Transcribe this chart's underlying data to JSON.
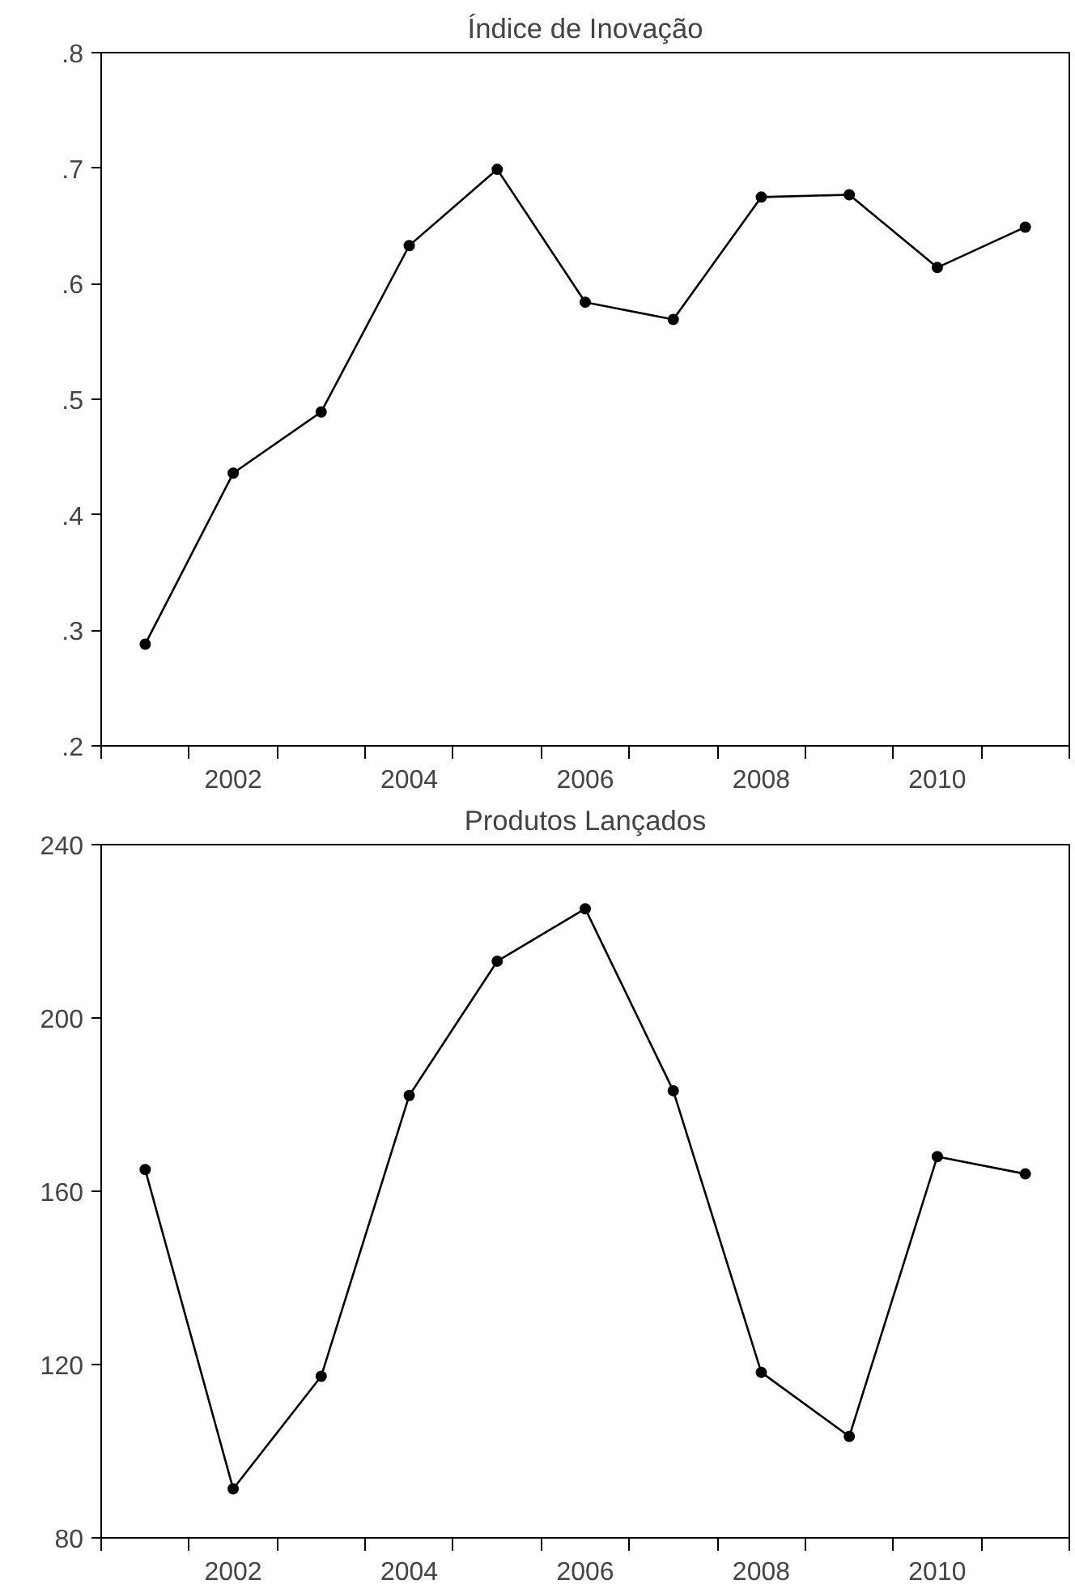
{
  "chart_data": [
    {
      "type": "line",
      "title": "Índice de Inovação",
      "categories": [
        null,
        "2002",
        null,
        "2004",
        null,
        "2006",
        null,
        "2008",
        null,
        "2010",
        null
      ],
      "marker": "circle",
      "grid": false,
      "series": [
        {
          "color": "#000000",
          "values": [
            0.288,
            0.436,
            0.489,
            0.633,
            0.699,
            0.584,
            0.569,
            0.675,
            0.677,
            0.614,
            0.649
          ]
        }
      ],
      "ylim": [
        0.2,
        0.8
      ],
      "yticks": [
        {
          "value": 0.2,
          "label": ".2"
        },
        {
          "value": 0.3,
          "label": ".3"
        },
        {
          "value": 0.4,
          "label": ".4"
        },
        {
          "value": 0.5,
          "label": ".5"
        },
        {
          "value": 0.6,
          "label": ".6"
        },
        {
          "value": 0.7,
          "label": ".7"
        },
        {
          "value": 0.8,
          "label": ".8"
        }
      ]
    },
    {
      "type": "line",
      "title": "Produtos Lançados",
      "categories": [
        null,
        "2002",
        null,
        "2004",
        null,
        "2006",
        null,
        "2008",
        null,
        "2010",
        null
      ],
      "marker": "circle",
      "grid": false,
      "series": [
        {
          "color": "#000000",
          "values": [
            165,
            91.3,
            117.3,
            182.1,
            213.1,
            225.2,
            183.2,
            118.2,
            103.4,
            168,
            164
          ]
        }
      ],
      "ylim": [
        80,
        240
      ],
      "yticks": [
        80,
        120,
        160,
        200,
        240
      ]
    }
  ]
}
